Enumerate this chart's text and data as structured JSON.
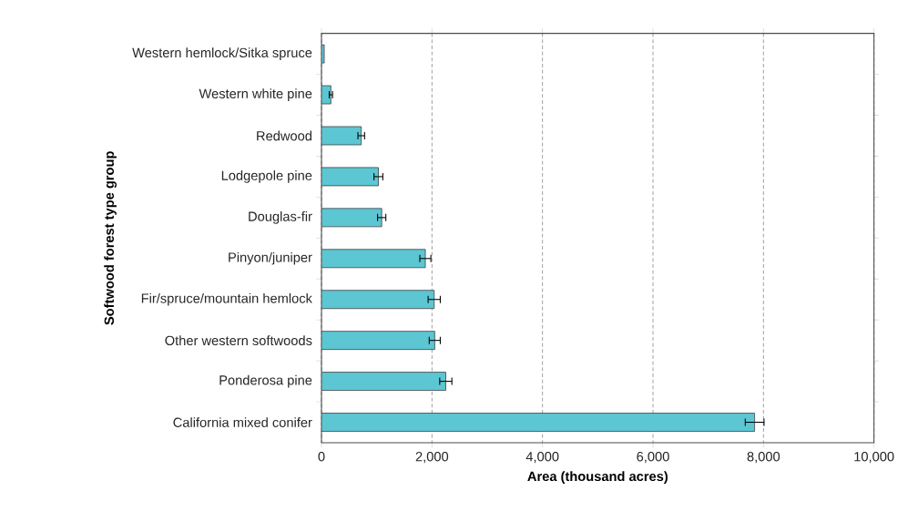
{
  "chart_data": {
    "type": "bar",
    "orientation": "horizontal",
    "xlabel": "Area (thousand acres)",
    "ylabel": "Softwood forest type group",
    "categories": [
      "Western hemlock/Sitka spruce",
      "Western white pine",
      "Redwood",
      "Lodgepole pine",
      "Douglas-fir",
      "Pinyon/juniper",
      "Fir/spruce/mountain hemlock",
      "Other western softwoods",
      "Ponderosa pine",
      "California mixed conifer"
    ],
    "values": [
      50,
      170,
      720,
      1030,
      1090,
      1880,
      2040,
      2050,
      2250,
      7840
    ],
    "errors": [
      null,
      30,
      60,
      80,
      75,
      100,
      110,
      100,
      110,
      170
    ],
    "color": "#5cc6d2",
    "xlim": [
      0,
      10000
    ],
    "xticks": [
      0,
      {
        "value": 2000,
        "label": "2,000"
      },
      {
        "value": 4000,
        "label": "4,000"
      },
      {
        "value": 6000,
        "label": "6,000"
      },
      {
        "value": 8000,
        "label": "8,000"
      },
      {
        "value": 10000,
        "label": "10,000"
      }
    ],
    "grid": "x"
  }
}
